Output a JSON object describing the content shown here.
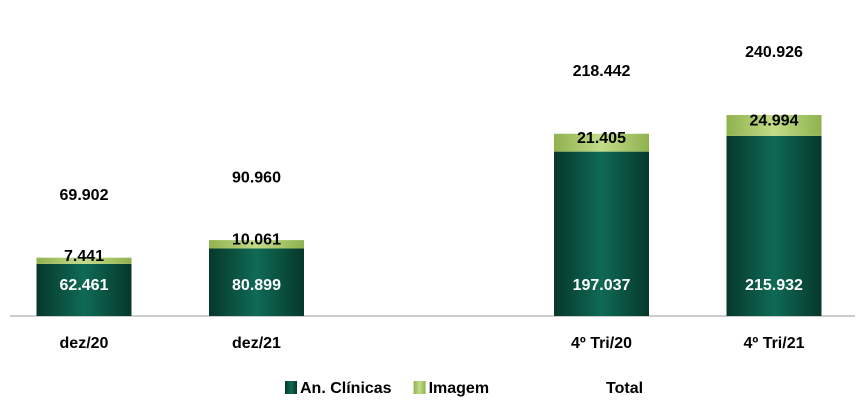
{
  "chart_data": {
    "type": "stacked-bar",
    "categories": [
      "dez/20",
      "dez/21",
      "4º Tri/20",
      "4º Tri/21"
    ],
    "series": [
      {
        "name": "An. Clínicas",
        "color": "#0b5a47",
        "values": [
          62461,
          80899,
          197037,
          215932
        ],
        "value_labels": [
          "62.461",
          "80.899",
          "197.037",
          "215.932"
        ]
      },
      {
        "name": "Imagem",
        "color": "#a9c867",
        "values": [
          7441,
          10061,
          21405,
          24994
        ],
        "value_labels": [
          "7.441",
          "10.061",
          "21.405",
          "24.994"
        ]
      }
    ],
    "total": {
      "name": "Total",
      "values": [
        69902,
        90960,
        218442,
        240926
      ],
      "value_labels": [
        "69.902",
        "90.960",
        "218.442",
        "240.926"
      ]
    },
    "legend": "bottom"
  }
}
